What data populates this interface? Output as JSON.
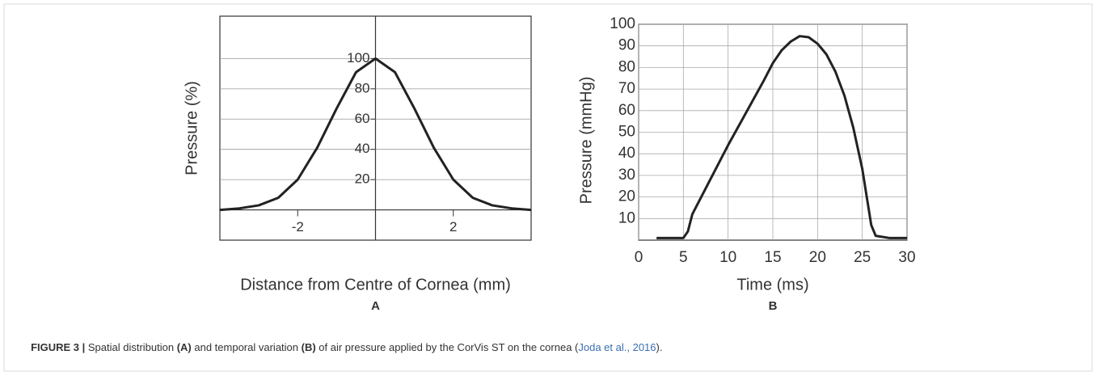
{
  "chart_data": [
    {
      "type": "line",
      "panel": "A",
      "xlabel": "Distance from Centre of Cornea (mm)",
      "ylabel": "Pressure (%)",
      "x": [
        -4,
        -3.5,
        -3,
        -2.5,
        -2,
        -1.5,
        -1,
        -0.5,
        0,
        0.5,
        1,
        1.5,
        2,
        2.5,
        3,
        3.5,
        4
      ],
      "values": [
        0,
        1,
        3,
        8,
        20,
        41,
        67,
        91,
        100,
        91,
        67,
        41,
        20,
        8,
        3,
        1,
        0
      ],
      "color": "#222222",
      "xlim": [
        -4,
        4
      ],
      "ylim": [
        -20,
        128
      ],
      "xticks": [
        -2,
        2
      ],
      "yticks": [
        20,
        40,
        60,
        80,
        100
      ],
      "grid": true
    },
    {
      "type": "line",
      "panel": "B",
      "xlabel": "Time (ms)",
      "ylabel": "Pressure (mmHg)",
      "x": [
        2,
        5,
        5.5,
        6,
        8,
        10,
        12,
        14,
        15,
        16,
        17,
        18,
        19,
        20,
        21,
        22,
        23,
        24,
        25,
        25.5,
        26,
        26.5,
        28,
        30
      ],
      "values": [
        1,
        1,
        4,
        12,
        28,
        44,
        59,
        74,
        82,
        88,
        92,
        94.5,
        94,
        91,
        86,
        78,
        67,
        52,
        33,
        20,
        7,
        2,
        1,
        1
      ],
      "color": "#222222",
      "xlim": [
        0,
        30
      ],
      "ylim": [
        0,
        100
      ],
      "xticks": [
        0,
        5,
        10,
        15,
        20,
        25,
        30
      ],
      "yticks": [
        10,
        20,
        30,
        40,
        50,
        60,
        70,
        80,
        90,
        100
      ],
      "grid": true
    }
  ],
  "caption": [
    "FIGURE 3 |",
    " Spatial distribution ",
    "(A)",
    " and temporal variation ",
    "(B)",
    " of air pressure applied by the CorVis ST on the cornea (",
    "Joda et al., 2016",
    ")."
  ]
}
